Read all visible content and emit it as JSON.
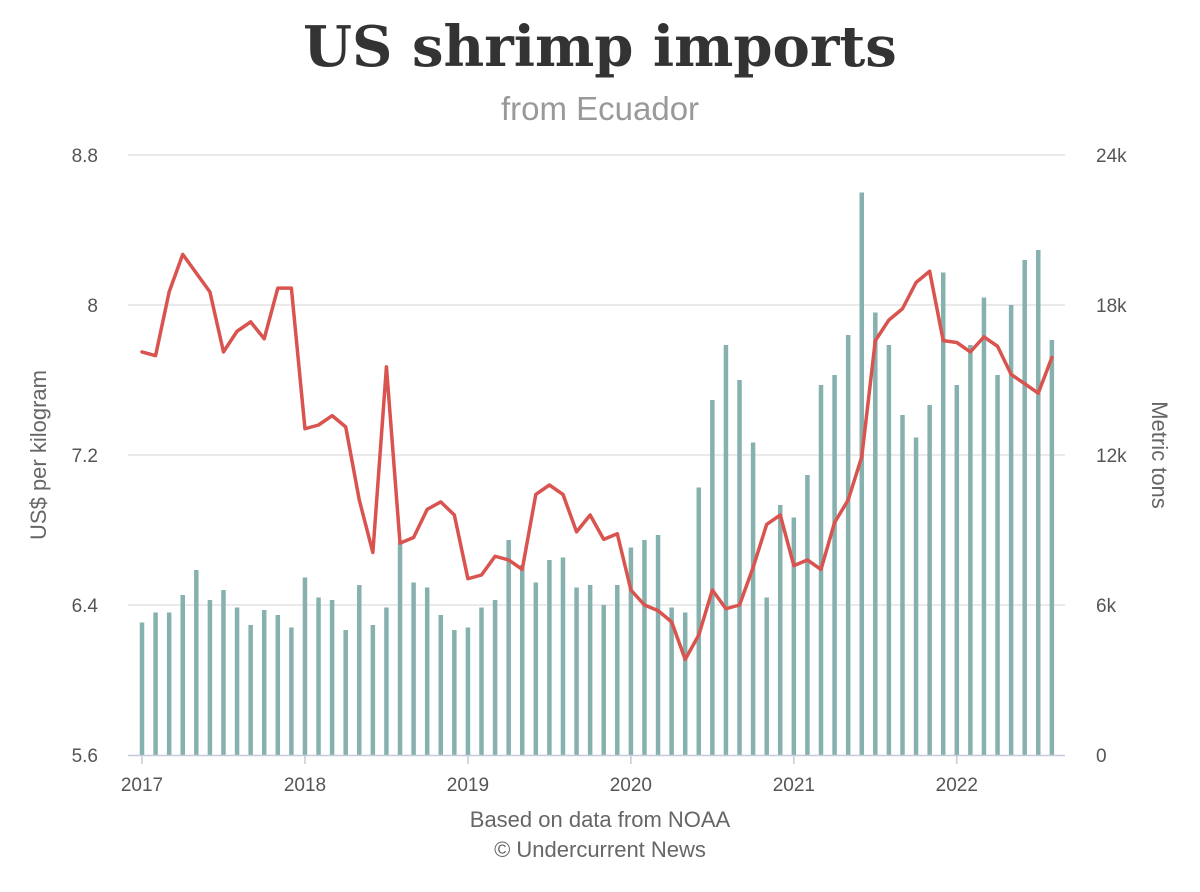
{
  "chart_data": {
    "type": "bar+line",
    "title": "US shrimp imports",
    "subtitle": "from Ecuador",
    "credits": [
      "Based on data from NOAA",
      "© Undercurrent News"
    ],
    "x_start": "2017-01",
    "x_ticks": [
      "2017",
      "2018",
      "2019",
      "2020",
      "2021",
      "2022"
    ],
    "left_axis": {
      "label": "US$ per kilogram",
      "range": [
        5.6,
        8.8
      ],
      "ticks": [
        "5.6",
        "6.4",
        "7.2",
        "8",
        "8.8"
      ]
    },
    "right_axis": {
      "label": "Metric tons",
      "range": [
        0,
        24000
      ],
      "ticks": [
        "0",
        "6k",
        "12k",
        "18k",
        "24k"
      ]
    },
    "grid": true,
    "series": [
      {
        "type": "bar",
        "axis": "right",
        "color": "#86b1ae",
        "values": [
          5300,
          5700,
          5700,
          6400,
          7400,
          6200,
          6600,
          5900,
          5200,
          5800,
          5600,
          5100,
          7100,
          6300,
          6200,
          5000,
          6800,
          5200,
          5900,
          8500,
          6900,
          6700,
          5600,
          5000,
          5100,
          5900,
          6200,
          8600,
          7600,
          6900,
          7800,
          7900,
          6700,
          6800,
          6000,
          6800,
          8300,
          8600,
          8800,
          5900,
          5700,
          10700,
          14200,
          16400,
          15000,
          12500,
          6300,
          10000,
          9500,
          11200,
          14800,
          15200,
          16800,
          22500,
          17700,
          16400,
          13600,
          12700,
          14000,
          19300,
          14800,
          16400,
          18300,
          15200,
          18000,
          19800,
          20200,
          16600
        ]
      },
      {
        "type": "line",
        "axis": "left",
        "color": "#d9534f",
        "values": [
          7.75,
          7.73,
          8.07,
          8.27,
          8.17,
          8.07,
          7.75,
          7.86,
          7.91,
          7.82,
          8.09,
          8.09,
          7.34,
          7.36,
          7.41,
          7.35,
          6.96,
          6.68,
          7.67,
          6.73,
          6.76,
          6.91,
          6.95,
          6.88,
          6.54,
          6.56,
          6.66,
          6.64,
          6.59,
          6.99,
          7.04,
          6.99,
          6.79,
          6.88,
          6.75,
          6.78,
          6.48,
          6.4,
          6.37,
          6.31,
          6.11,
          6.24,
          6.48,
          6.38,
          6.4,
          6.6,
          6.83,
          6.88,
          6.61,
          6.64,
          6.59,
          6.84,
          6.96,
          7.19,
          7.81,
          7.92,
          7.98,
          8.12,
          8.18,
          7.81,
          7.8,
          7.75,
          7.83,
          7.78,
          7.63,
          7.58,
          7.53,
          7.72
        ]
      }
    ]
  }
}
